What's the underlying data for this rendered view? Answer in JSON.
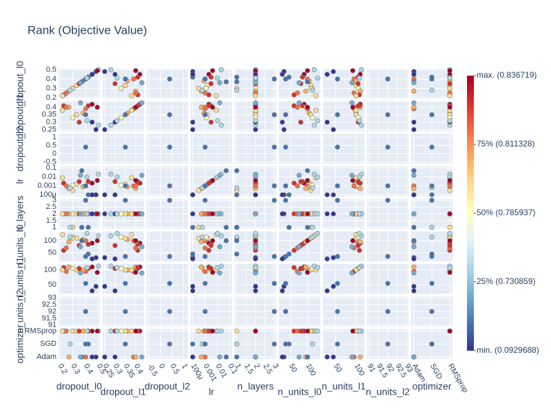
{
  "chart_data": {
    "type": "scatter_matrix",
    "title": "Rank (Objective Value)",
    "dimensions": [
      {
        "name": "dropout_l0",
        "range": [
          0.19,
          0.51
        ],
        "ticks": [
          0.2,
          0.3,
          0.4,
          0.5
        ]
      },
      {
        "name": "dropout_l1",
        "range": [
          0.24,
          0.44
        ],
        "ticks": [
          0.25,
          0.3,
          0.35,
          0.4
        ]
      },
      {
        "name": "dropout_l2",
        "range": [
          -0.6,
          1.2
        ],
        "ticks": [
          -0.5,
          0,
          0.5,
          1
        ]
      },
      {
        "name": "lr",
        "log": true,
        "range": [
          7e-05,
          0.15
        ],
        "ticks": [
          {
            "value": 0.0001,
            "label": "100μ"
          },
          0.001,
          0.01,
          0.1
        ]
      },
      {
        "name": "n_layers",
        "range": [
          0.9,
          3.1
        ],
        "ticks": [
          1,
          1.5,
          2,
          2.5,
          3
        ]
      },
      {
        "name": "n_units_l0",
        "range": [
          15,
          138
        ],
        "ticks": [
          50,
          100
        ]
      },
      {
        "name": "n_units_l1",
        "range": [
          20,
          120
        ],
        "ticks": [
          50,
          100
        ]
      },
      {
        "name": "n_units_l2",
        "range": [
          90.9,
          93.1
        ],
        "ticks": [
          91,
          91.5,
          92,
          92.5,
          93
        ]
      },
      {
        "name": "optimizer",
        "categories": [
          "Adam",
          "SGD",
          "RMSprop"
        ],
        "range": [
          -0.15,
          2.15
        ]
      }
    ],
    "trials": [
      {
        "params": [
          0.45,
          0.42,
          null,
          0.002,
          2,
          90,
          110,
          null,
          "RMSprop"
        ],
        "color": "#a50026"
      },
      {
        "params": [
          0.42,
          0.41,
          null,
          0.003,
          2,
          85,
          105,
          null,
          "RMSprop"
        ],
        "color": "#d73027"
      },
      {
        "params": [
          0.4,
          0.39,
          null,
          0.001,
          2,
          100,
          95,
          null,
          "Adam"
        ],
        "color": "#f46d43"
      },
      {
        "params": [
          0.38,
          0.36,
          null,
          0.0008,
          2,
          105,
          100,
          null,
          "RMSprop"
        ],
        "color": "#fdae61"
      },
      {
        "params": [
          0.33,
          0.35,
          null,
          0.0015,
          2,
          110,
          100,
          null,
          "RMSprop"
        ],
        "color": "#fee090"
      },
      {
        "params": [
          0.3,
          0.33,
          null,
          0.0012,
          2,
          115,
          105,
          null,
          "RMSprop"
        ],
        "color": "#ffffbf"
      },
      {
        "params": [
          0.27,
          0.4,
          null,
          0.0005,
          2,
          95,
          110,
          null,
          "Adam"
        ],
        "color": "#fdae61"
      },
      {
        "params": [
          0.23,
          0.41,
          null,
          0.002,
          2,
          60,
          108,
          null,
          "RMSprop"
        ],
        "color": "#d73027"
      },
      {
        "params": [
          0.25,
          0.4,
          null,
          0.001,
          2,
          70,
          95,
          null,
          "RMSprop"
        ],
        "color": "#f46d43"
      },
      {
        "params": [
          0.5,
          0.28,
          null,
          0.02,
          2,
          120,
          113,
          null,
          "RMSprop"
        ],
        "color": "#abd9e9"
      },
      {
        "params": [
          0.48,
          0.25,
          null,
          0.0001,
          2,
          30,
          45,
          null,
          "Adam"
        ],
        "color": "#313695"
      },
      {
        "params": [
          0.35,
          0.3,
          null,
          0.003,
          2,
          80,
          105,
          null,
          "RMSprop"
        ],
        "color": "#d73027"
      },
      {
        "params": [
          0.42,
          null,
          null,
          0.0001,
          1,
          45,
          null,
          null,
          "SGD"
        ],
        "color": "#4575b4"
      },
      {
        "params": [
          0.3,
          null,
          null,
          0.0003,
          1,
          110,
          null,
          null,
          "RMSprop"
        ],
        "color": "#fee090"
      },
      {
        "params": [
          0.28,
          null,
          null,
          0.0006,
          1,
          115,
          null,
          null,
          "SGD"
        ],
        "color": "#abd9e9"
      },
      {
        "params": [
          0.37,
          null,
          null,
          0.05,
          1,
          100,
          null,
          null,
          "Adam"
        ],
        "color": "#4575b4"
      },
      {
        "params": [
          0.4,
          0.35,
          0.4,
          0.001,
          3,
          35,
          55,
          92,
          "SGD"
        ],
        "color": "#4575b4"
      },
      {
        "params": [
          0.45,
          0.3,
          null,
          0.0001,
          2,
          25,
          30,
          null,
          "Adam"
        ],
        "color": "#313695"
      },
      {
        "params": [
          0.22,
          0.38,
          null,
          0.008,
          2,
          125,
          100,
          null,
          "RMSprop"
        ],
        "color": "#fee090"
      },
      {
        "params": [
          0.41,
          0.31,
          null,
          0.01,
          2,
          130,
          108,
          null,
          "RMSprop"
        ],
        "color": "#abd9e9"
      },
      {
        "params": [
          0.49,
          0.4,
          null,
          0.004,
          2,
          100,
          92,
          null,
          "RMSprop"
        ],
        "color": "#a50026"
      },
      {
        "params": [
          0.36,
          0.43,
          null,
          0.015,
          2,
          75,
          90,
          null,
          "Adam"
        ],
        "color": "#74add1"
      }
    ],
    "colorbar": {
      "colorscale": [
        "#a50026",
        "#d73027",
        "#f46d43",
        "#fdae61",
        "#fee090",
        "#ffffbf",
        "#e0f3f8",
        "#abd9e9",
        "#74add1",
        "#4575b4",
        "#313695"
      ],
      "labels": [
        "max. (0.836719)",
        "75% (0.811328)",
        "50% (0.785937)",
        "25% (0.730859)",
        "min. (0.0929688)"
      ]
    }
  }
}
